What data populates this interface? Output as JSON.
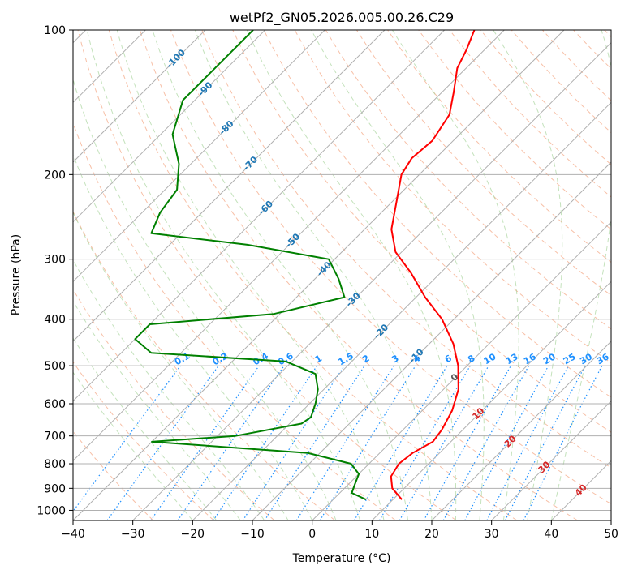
{
  "chart_data": {
    "type": "line",
    "title": "wetPf2_GN05.2026.005.00.26.C29",
    "xlabel": "Temperature (°C)",
    "ylabel": "Pressure (hPa)",
    "xlim": [
      -40,
      50
    ],
    "ylim": [
      1050,
      100
    ],
    "y_scale": "log",
    "skew": true,
    "grid": true,
    "x_ticks": [
      -40,
      -30,
      -20,
      -10,
      0,
      10,
      20,
      30,
      40,
      50
    ],
    "y_ticks": [
      100,
      200,
      300,
      400,
      500,
      600,
      700,
      800,
      900,
      1000
    ],
    "isotherm_labels": {
      "color": "#1f77b4",
      "items": [
        {
          "text": "-100",
          "p": 115
        },
        {
          "text": "-90",
          "p": 133
        },
        {
          "text": "-80",
          "p": 160
        },
        {
          "text": "-70",
          "p": 190
        },
        {
          "text": "-60",
          "p": 235
        },
        {
          "text": "-50",
          "p": 275
        },
        {
          "text": "-40",
          "p": 315
        },
        {
          "text": "-30",
          "p": 365
        },
        {
          "text": "-20",
          "p": 425
        },
        {
          "text": "-10",
          "p": 478
        },
        {
          "text": "0",
          "p": 530
        },
        {
          "text": "10",
          "p": 630
        },
        {
          "text": "20",
          "p": 720
        },
        {
          "text": "30",
          "p": 815
        },
        {
          "text": "40",
          "p": 910
        }
      ],
      "warm_color": "#d62728",
      "zero_color": "#555555"
    },
    "mixing_ratio_labels": {
      "color": "#1e90ff",
      "p": 490,
      "items": [
        "0.1",
        "0.2",
        "0.4",
        "0.6",
        "1",
        "1.5",
        "2",
        "3",
        "4",
        "6",
        "8",
        "10",
        "13",
        "16",
        "20",
        "25",
        "30",
        "36"
      ]
    },
    "series": [
      {
        "role": "temperature",
        "color": "#ff0000",
        "points": [
          {
            "p": 950,
            "t": 11.5
          },
          {
            "p": 900,
            "t": 8.0
          },
          {
            "p": 850,
            "t": 5.8
          },
          {
            "p": 800,
            "t": 5.0
          },
          {
            "p": 760,
            "t": 5.5
          },
          {
            "p": 720,
            "t": 7.0
          },
          {
            "p": 680,
            "t": 6.5
          },
          {
            "p": 620,
            "t": 5.0
          },
          {
            "p": 560,
            "t": 2.5
          },
          {
            "p": 500,
            "t": -1.5
          },
          {
            "p": 450,
            "t": -6.0
          },
          {
            "p": 400,
            "t": -12.0
          },
          {
            "p": 360,
            "t": -18.5
          },
          {
            "p": 320,
            "t": -25.0
          },
          {
            "p": 290,
            "t": -31.0
          },
          {
            "p": 260,
            "t": -35.5
          },
          {
            "p": 230,
            "t": -39.0
          },
          {
            "p": 200,
            "t": -43.0
          },
          {
            "p": 185,
            "t": -44.0
          },
          {
            "p": 170,
            "t": -43.5
          },
          {
            "p": 150,
            "t": -45.0
          },
          {
            "p": 135,
            "t": -48.0
          },
          {
            "p": 120,
            "t": -51.5
          },
          {
            "p": 110,
            "t": -53.0
          },
          {
            "p": 100,
            "t": -55.0
          }
        ]
      },
      {
        "role": "dewpoint",
        "color": "#008000",
        "points": [
          {
            "p": 950,
            "t": 5.5
          },
          {
            "p": 920,
            "t": 2.0
          },
          {
            "p": 880,
            "t": 1.0
          },
          {
            "p": 840,
            "t": 0.0
          },
          {
            "p": 800,
            "t": -3.0
          },
          {
            "p": 760,
            "t": -12.0
          },
          {
            "p": 720,
            "t": -40.0
          },
          {
            "p": 700,
            "t": -27.0
          },
          {
            "p": 660,
            "t": -18.0
          },
          {
            "p": 640,
            "t": -17.5
          },
          {
            "p": 600,
            "t": -19.0
          },
          {
            "p": 560,
            "t": -21.0
          },
          {
            "p": 520,
            "t": -24.0
          },
          {
            "p": 490,
            "t": -31.0
          },
          {
            "p": 470,
            "t": -55.0
          },
          {
            "p": 440,
            "t": -60.0
          },
          {
            "p": 410,
            "t": -60.0
          },
          {
            "p": 390,
            "t": -41.0
          },
          {
            "p": 360,
            "t": -32.0
          },
          {
            "p": 330,
            "t": -36.0
          },
          {
            "p": 300,
            "t": -41.0
          },
          {
            "p": 280,
            "t": -57.0
          },
          {
            "p": 265,
            "t": -75.0
          },
          {
            "p": 240,
            "t": -77.0
          },
          {
            "p": 215,
            "t": -78.0
          },
          {
            "p": 190,
            "t": -82.0
          },
          {
            "p": 165,
            "t": -88.0
          },
          {
            "p": 140,
            "t": -92.0
          },
          {
            "p": 120,
            "t": -92.0
          },
          {
            "p": 100,
            "t": -92.0
          }
        ]
      }
    ]
  }
}
